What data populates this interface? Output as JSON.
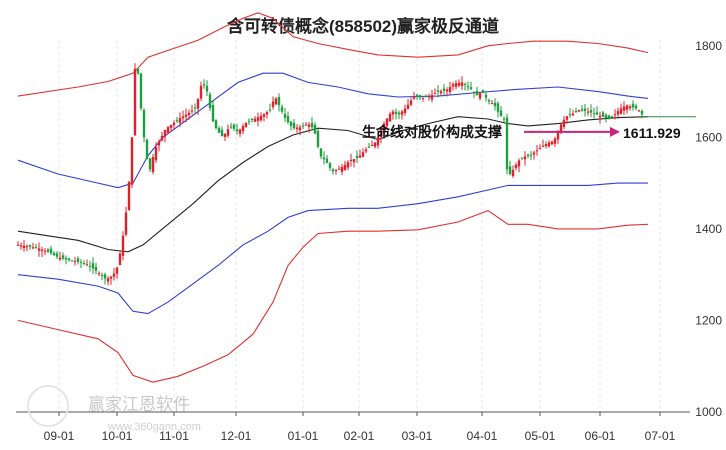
{
  "title": "含可转债概念(858502)赢家极反通道",
  "chart_data": {
    "type": "candlestick",
    "title": "含可转债概念(858502)赢家极反通道",
    "ylim": [
      1000,
      1900
    ],
    "y_ticks": [
      "1000",
      "1200",
      "1400",
      "1600",
      "1800"
    ],
    "x_ticks": [
      "09-01",
      "10-01",
      "11-01",
      "12-01",
      "01-01",
      "02-01",
      "03-01",
      "04-01",
      "05-01",
      "06-01",
      "07-01"
    ],
    "grid": "vertical",
    "annotation": {
      "text": "生命线对股价构成支撑",
      "value_label": "1611.929",
      "value": 1611.929
    },
    "colors": {
      "up": "#e0202a",
      "down": "#1e9e3e",
      "outer_channel": "#e03030",
      "inner_channel": "#2f3fd8",
      "midline": "#222222",
      "arrow": "#c8247a",
      "level": "#2e8b3e"
    },
    "channels": {
      "outer_upper": [
        [
          0,
          1690
        ],
        [
          60,
          1710
        ],
        [
          90,
          1722
        ],
        [
          115,
          1740
        ],
        [
          130,
          1775
        ],
        [
          150,
          1790
        ],
        [
          180,
          1812
        ],
        [
          205,
          1840
        ],
        [
          225,
          1860
        ],
        [
          240,
          1872
        ],
        [
          255,
          1860
        ],
        [
          275,
          1820
        ],
        [
          300,
          1805
        ],
        [
          330,
          1792
        ],
        [
          360,
          1780
        ],
        [
          400,
          1775
        ],
        [
          440,
          1780
        ],
        [
          470,
          1800
        ],
        [
          490,
          1805
        ],
        [
          515,
          1810
        ],
        [
          550,
          1810
        ],
        [
          580,
          1805
        ],
        [
          610,
          1795
        ],
        [
          630,
          1785
        ]
      ],
      "inner_upper": [
        [
          0,
          1550
        ],
        [
          40,
          1520
        ],
        [
          80,
          1500
        ],
        [
          100,
          1490
        ],
        [
          115,
          1500
        ],
        [
          130,
          1560
        ],
        [
          145,
          1600
        ],
        [
          170,
          1640
        ],
        [
          195,
          1680
        ],
        [
          220,
          1720
        ],
        [
          245,
          1740
        ],
        [
          265,
          1740
        ],
        [
          290,
          1720
        ],
        [
          320,
          1710
        ],
        [
          350,
          1695
        ],
        [
          380,
          1688
        ],
        [
          420,
          1690
        ],
        [
          460,
          1698
        ],
        [
          500,
          1705
        ],
        [
          540,
          1710
        ],
        [
          580,
          1700
        ],
        [
          610,
          1690
        ],
        [
          630,
          1685
        ]
      ],
      "midline": [
        [
          0,
          1395
        ],
        [
          30,
          1385
        ],
        [
          60,
          1375
        ],
        [
          90,
          1355
        ],
        [
          110,
          1350
        ],
        [
          125,
          1365
        ],
        [
          150,
          1410
        ],
        [
          175,
          1455
        ],
        [
          200,
          1505
        ],
        [
          225,
          1545
        ],
        [
          250,
          1580
        ],
        [
          275,
          1605
        ],
        [
          300,
          1620
        ],
        [
          330,
          1615
        ],
        [
          360,
          1595
        ],
        [
          385,
          1615
        ],
        [
          410,
          1630
        ],
        [
          440,
          1645
        ],
        [
          470,
          1640
        ],
        [
          490,
          1630
        ],
        [
          510,
          1625
        ],
        [
          540,
          1630
        ],
        [
          570,
          1638
        ],
        [
          600,
          1643
        ],
        [
          630,
          1645
        ]
      ],
      "inner_lower": [
        [
          0,
          1300
        ],
        [
          40,
          1290
        ],
        [
          80,
          1275
        ],
        [
          100,
          1260
        ],
        [
          115,
          1220
        ],
        [
          130,
          1215
        ],
        [
          150,
          1240
        ],
        [
          175,
          1280
        ],
        [
          200,
          1320
        ],
        [
          225,
          1365
        ],
        [
          250,
          1395
        ],
        [
          270,
          1425
        ],
        [
          290,
          1440
        ],
        [
          330,
          1445
        ],
        [
          360,
          1445
        ],
        [
          400,
          1455
        ],
        [
          440,
          1470
        ],
        [
          470,
          1485
        ],
        [
          490,
          1495
        ],
        [
          510,
          1495
        ],
        [
          540,
          1495
        ],
        [
          570,
          1495
        ],
        [
          600,
          1500
        ],
        [
          630,
          1500
        ]
      ],
      "outer_lower": [
        [
          0,
          1200
        ],
        [
          40,
          1180
        ],
        [
          80,
          1160
        ],
        [
          100,
          1130
        ],
        [
          115,
          1080
        ],
        [
          135,
          1065
        ],
        [
          160,
          1078
        ],
        [
          185,
          1100
        ],
        [
          210,
          1125
        ],
        [
          235,
          1170
        ],
        [
          255,
          1240
        ],
        [
          270,
          1320
        ],
        [
          285,
          1360
        ],
        [
          300,
          1390
        ],
        [
          330,
          1395
        ],
        [
          360,
          1395
        ],
        [
          400,
          1398
        ],
        [
          440,
          1415
        ],
        [
          470,
          1440
        ],
        [
          490,
          1410
        ],
        [
          510,
          1410
        ],
        [
          540,
          1400
        ],
        [
          580,
          1400
        ],
        [
          610,
          1408
        ],
        [
          630,
          1410
        ]
      ]
    },
    "prices": [
      [
        0,
        1365
      ],
      [
        10,
        1362
      ],
      [
        20,
        1358
      ],
      [
        30,
        1350
      ],
      [
        40,
        1338
      ],
      [
        50,
        1332
      ],
      [
        60,
        1328
      ],
      [
        70,
        1322
      ],
      [
        80,
        1305
      ],
      [
        88,
        1290
      ],
      [
        95,
        1298
      ],
      [
        100,
        1320
      ],
      [
        105,
        1385
      ],
      [
        110,
        1470
      ],
      [
        114,
        1600
      ],
      [
        118,
        1800
      ],
      [
        121,
        1710
      ],
      [
        124,
        1640
      ],
      [
        128,
        1560
      ],
      [
        132,
        1530
      ],
      [
        137,
        1575
      ],
      [
        142,
        1595
      ],
      [
        148,
        1620
      ],
      [
        155,
        1630
      ],
      [
        162,
        1642
      ],
      [
        170,
        1652
      ],
      [
        178,
        1665
      ],
      [
        184,
        1722
      ],
      [
        189,
        1700
      ],
      [
        194,
        1640
      ],
      [
        199,
        1615
      ],
      [
        205,
        1600
      ],
      [
        212,
        1625
      ],
      [
        220,
        1612
      ],
      [
        228,
        1632
      ],
      [
        238,
        1642
      ],
      [
        246,
        1650
      ],
      [
        252,
        1660
      ],
      [
        257,
        1690
      ],
      [
        262,
        1665
      ],
      [
        268,
        1638
      ],
      [
        275,
        1620
      ],
      [
        282,
        1622
      ],
      [
        290,
        1630
      ],
      [
        296,
        1618
      ],
      [
        302,
        1560
      ],
      [
        308,
        1548
      ],
      [
        314,
        1525
      ],
      [
        320,
        1530
      ],
      [
        326,
        1538
      ],
      [
        332,
        1550
      ],
      [
        340,
        1555
      ],
      [
        346,
        1570
      ],
      [
        352,
        1580
      ],
      [
        358,
        1590
      ],
      [
        366,
        1630
      ],
      [
        374,
        1658
      ],
      [
        380,
        1648
      ],
      [
        388,
        1665
      ],
      [
        396,
        1690
      ],
      [
        404,
        1686
      ],
      [
        412,
        1690
      ],
      [
        420,
        1700
      ],
      [
        428,
        1702
      ],
      [
        436,
        1718
      ],
      [
        444,
        1720
      ],
      [
        452,
        1708
      ],
      [
        458,
        1690
      ],
      [
        464,
        1700
      ],
      [
        470,
        1680
      ],
      [
        476,
        1672
      ],
      [
        482,
        1648
      ],
      [
        486,
        1640
      ],
      [
        489,
        1530
      ],
      [
        492,
        1520
      ],
      [
        496,
        1532
      ],
      [
        500,
        1548
      ],
      [
        506,
        1558
      ],
      [
        512,
        1560
      ],
      [
        518,
        1570
      ],
      [
        524,
        1580
      ],
      [
        530,
        1588
      ],
      [
        536,
        1592
      ],
      [
        542,
        1625
      ],
      [
        548,
        1645
      ],
      [
        554,
        1650
      ],
      [
        560,
        1660
      ],
      [
        566,
        1658
      ],
      [
        572,
        1655
      ],
      [
        578,
        1650
      ],
      [
        584,
        1646
      ],
      [
        590,
        1640
      ],
      [
        596,
        1648
      ],
      [
        602,
        1662
      ],
      [
        608,
        1670
      ],
      [
        614,
        1666
      ],
      [
        620,
        1662
      ],
      [
        624,
        1650
      ]
    ]
  }
}
